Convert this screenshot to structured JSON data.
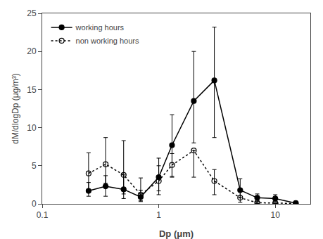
{
  "chart_data": {
    "type": "line",
    "xlabel": "Dp (μm)",
    "ylabel": "dM/dlogDp (μg/m³)",
    "log": "x",
    "grid": false,
    "legend": "upper left",
    "xlim": [
      0.1,
      20
    ],
    "xticks": [
      0.1,
      1,
      10
    ],
    "ylim": [
      0,
      25
    ],
    "yticks": [
      0,
      5,
      10,
      15,
      20,
      25
    ],
    "series": [
      {
        "name": "working hours",
        "color": "black",
        "marker": "circle",
        "line_style": "solid",
        "x": [
          0.25,
          0.35,
          0.5,
          0.7,
          1.0,
          1.3,
          2.0,
          3.0,
          5.0,
          7.0,
          10.0,
          15.0
        ],
        "values": [
          1.7,
          2.3,
          1.9,
          0.9,
          3.5,
          7.7,
          13.5,
          16.2,
          1.8,
          0.8,
          0.7,
          0.1
        ],
        "error_lo": [
          0.7,
          1.3,
          1.2,
          0.6,
          1.8,
          4.2,
          5.5,
          7.5,
          1.0,
          0.5,
          0.4,
          0.05
        ],
        "error_hi": [
          1.1,
          1.4,
          1.9,
          0.9,
          2.5,
          4.0,
          6.5,
          7.0,
          1.5,
          0.5,
          0.5,
          0.05
        ]
      },
      {
        "name": "non working hours",
        "color": "black",
        "marker": "circle-open",
        "line_style": "dotted",
        "x": [
          0.25,
          0.35,
          0.5,
          0.7,
          1.0,
          1.3,
          2.0,
          3.0,
          5.0,
          7.0,
          10.0,
          15.0
        ],
        "values": [
          4.0,
          5.2,
          3.8,
          1.2,
          3.0,
          5.1,
          7.0,
          3.0,
          0.8,
          0.15,
          0.1,
          0.05
        ],
        "error_lo": [
          2.4,
          2.5,
          2.5,
          0.8,
          1.8,
          1.5,
          3.5,
          1.8,
          0.6,
          0.1,
          0.05,
          0.02
        ],
        "error_hi": [
          2.7,
          3.5,
          4.5,
          2.2,
          2.0,
          1.5,
          0.0,
          1.5,
          0.8,
          0.1,
          0.05,
          0.02
        ]
      }
    ]
  }
}
